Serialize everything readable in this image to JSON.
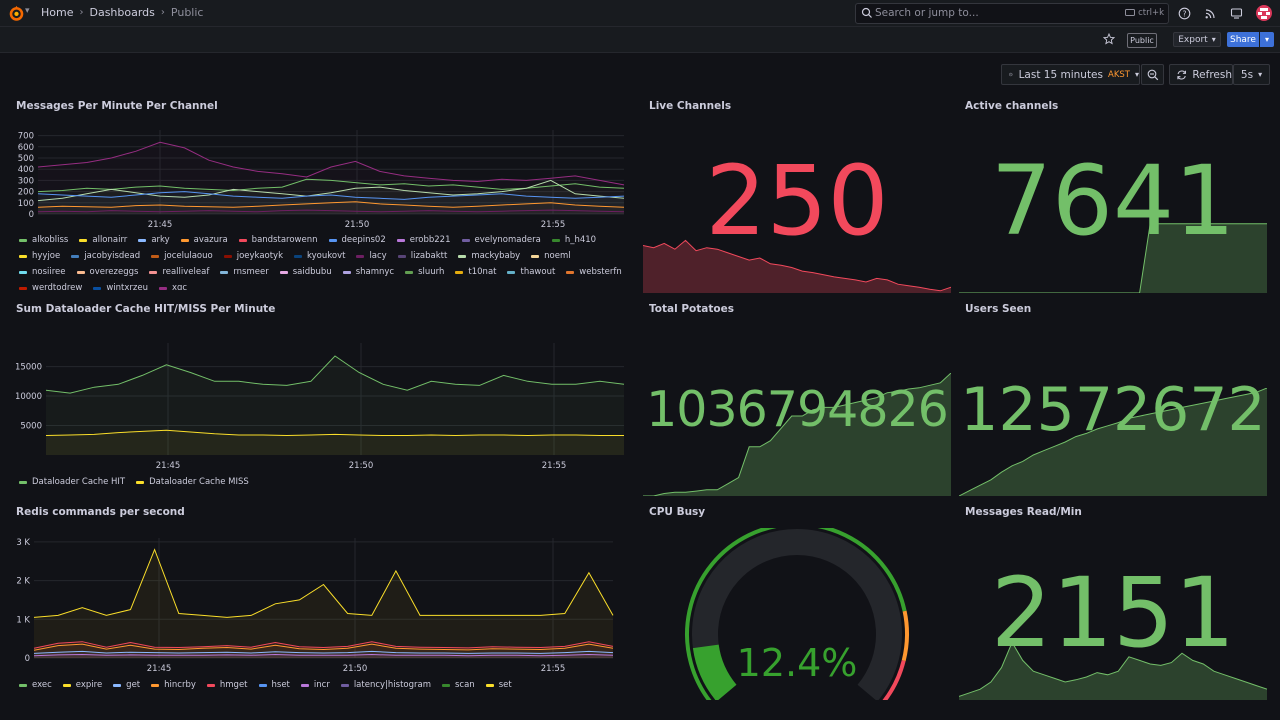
{
  "breadcrumbs": [
    "Home",
    "Dashboards",
    "Public"
  ],
  "search": {
    "placeholder": "Search or jump to...",
    "shortcut": "ctrl+k"
  },
  "toolbar": {
    "public_badge": "Public",
    "export_label": "Export",
    "share_label": "Share"
  },
  "timepicker": {
    "range": "Last 15 minutes",
    "timezone": "AKST",
    "refresh_label": "Refresh",
    "interval": "5s"
  },
  "colors": {
    "green": "#73bf69",
    "red": "#f2495c",
    "yellow": "#fade2a",
    "blue": "#8ab8ff",
    "orange": "#ff9830",
    "purple": "#ca95e5",
    "share_blue": "#3d71d9"
  },
  "icons": {
    "logo": "grafana-logo-icon",
    "help": "help-icon",
    "news": "rss-icon",
    "kiosk": "monitor-icon",
    "star": "star-icon",
    "clock": "clock-icon",
    "zoom": "zoom-out-icon",
    "refresh": "refresh-icon"
  },
  "panels": {
    "messages_per_minute": {
      "title": "Messages Per Minute Per Channel",
      "legend": [
        {
          "name": "alkobliss",
          "color": "#73bf69"
        },
        {
          "name": "allonairr",
          "color": "#fade2a"
        },
        {
          "name": "arky",
          "color": "#8ab8ff"
        },
        {
          "name": "avazura",
          "color": "#ff9830"
        },
        {
          "name": "bandstarowenn",
          "color": "#f2495c"
        },
        {
          "name": "deepins02",
          "color": "#5794f2"
        },
        {
          "name": "erobb221",
          "color": "#b877d9"
        },
        {
          "name": "evelynomadera",
          "color": "#705da0"
        },
        {
          "name": "h_h410",
          "color": "#37872d"
        },
        {
          "name": "hyyjoe",
          "color": "#fade2a"
        },
        {
          "name": "jacobyisdead",
          "color": "#447ebc"
        },
        {
          "name": "jocelulaouo",
          "color": "#c15c17"
        },
        {
          "name": "joeykaotyk",
          "color": "#890f02"
        },
        {
          "name": "kyoukovt",
          "color": "#0a437c"
        },
        {
          "name": "lacy",
          "color": "#6d1f62"
        },
        {
          "name": "lizabaktt",
          "color": "#584477"
        },
        {
          "name": "mackybaby",
          "color": "#b7dbab"
        },
        {
          "name": "noeml",
          "color": "#f4d598"
        },
        {
          "name": "nosiiree",
          "color": "#70dbed"
        },
        {
          "name": "overezeggs",
          "color": "#f9ba8f"
        },
        {
          "name": "realliveleaf",
          "color": "#f29191"
        },
        {
          "name": "rnsmeer",
          "color": "#82b5d8"
        },
        {
          "name": "saidbubu",
          "color": "#e5a8e2"
        },
        {
          "name": "shamnyc",
          "color": "#aea2e0"
        },
        {
          "name": "sluurh",
          "color": "#629e51"
        },
        {
          "name": "t10nat",
          "color": "#e5ac0e"
        },
        {
          "name": "thawout",
          "color": "#64b0c8"
        },
        {
          "name": "websterfn",
          "color": "#e0752d"
        },
        {
          "name": "werdtodrew",
          "color": "#bf1b00"
        },
        {
          "name": "wintxrzeu",
          "color": "#0a50a1"
        },
        {
          "name": "xqc",
          "color": "#962d82"
        }
      ]
    },
    "cache": {
      "title": "Sum Dataloader Cache HIT/MISS Per Minute",
      "legend": [
        {
          "name": "Dataloader Cache HIT",
          "color": "#73bf69"
        },
        {
          "name": "Dataloader Cache MISS",
          "color": "#fade2a"
        }
      ]
    },
    "redis": {
      "title": "Redis commands per second",
      "legend": [
        {
          "name": "exec",
          "color": "#73bf69"
        },
        {
          "name": "expire",
          "color": "#fade2a"
        },
        {
          "name": "get",
          "color": "#8ab8ff"
        },
        {
          "name": "hincrby",
          "color": "#ff9830"
        },
        {
          "name": "hmget",
          "color": "#f2495c"
        },
        {
          "name": "hset",
          "color": "#5794f2"
        },
        {
          "name": "incr",
          "color": "#b877d9"
        },
        {
          "name": "latency|histogram",
          "color": "#705da0"
        },
        {
          "name": "scan",
          "color": "#37872d"
        },
        {
          "name": "set",
          "color": "#fade2a"
        }
      ]
    },
    "live_channels": {
      "title": "Live Channels",
      "value": "250",
      "color": "#f2495c"
    },
    "active_channels": {
      "title": "Active channels",
      "value": "7641",
      "color": "#73bf69"
    },
    "total_potatoes": {
      "title": "Total Potatoes",
      "value": "1036794826",
      "color": "#73bf69"
    },
    "users_seen": {
      "title": "Users Seen",
      "value": "12572672",
      "color": "#73bf69"
    },
    "cpu_busy": {
      "title": "CPU Busy",
      "value": "12.4%",
      "percent": 12.4,
      "color": "#37a12e"
    },
    "messages_read": {
      "title": "Messages Read/Min",
      "value": "2151",
      "color": "#73bf69"
    }
  },
  "chart_data": [
    {
      "type": "line",
      "title": "Messages Per Minute Per Channel",
      "x_ticks": [
        "21:45",
        "21:50",
        "21:55"
      ],
      "y_ticks": [
        "0",
        "100",
        "200",
        "300",
        "400",
        "500",
        "600",
        "700"
      ],
      "ylim": [
        0,
        750
      ],
      "x": [
        0,
        1,
        2,
        3,
        4,
        5,
        6,
        7,
        8,
        9,
        10,
        11,
        12,
        13,
        14,
        15,
        16,
        17,
        18,
        19,
        20,
        21,
        22,
        23,
        24
      ],
      "series": [
        {
          "name": "xqc",
          "color": "#962d82",
          "values": [
            420,
            440,
            460,
            500,
            560,
            640,
            590,
            480,
            420,
            380,
            360,
            330,
            420,
            470,
            380,
            340,
            320,
            300,
            290,
            310,
            300,
            320,
            340,
            300,
            260
          ]
        },
        {
          "name": "h_h410",
          "color": "#73bf69",
          "values": [
            200,
            210,
            230,
            220,
            240,
            250,
            230,
            220,
            210,
            230,
            240,
            310,
            300,
            280,
            260,
            270,
            250,
            260,
            240,
            220,
            230,
            250,
            270,
            240,
            230
          ]
        },
        {
          "name": "mackybaby",
          "color": "#b7dbab",
          "values": [
            120,
            140,
            180,
            220,
            190,
            160,
            150,
            170,
            220,
            200,
            180,
            160,
            190,
            230,
            240,
            210,
            190,
            170,
            180,
            200,
            230,
            300,
            180,
            160,
            140
          ]
        },
        {
          "name": "deepins02",
          "color": "#5794f2",
          "values": [
            180,
            170,
            160,
            150,
            170,
            190,
            200,
            180,
            160,
            150,
            140,
            160,
            170,
            150,
            140,
            130,
            150,
            160,
            170,
            180,
            160,
            150,
            140,
            150,
            160
          ]
        },
        {
          "name": "avazura",
          "color": "#ff9830",
          "values": [
            60,
            70,
            65,
            60,
            75,
            80,
            70,
            65,
            60,
            70,
            80,
            90,
            100,
            110,
            90,
            80,
            70,
            60,
            70,
            80,
            90,
            100,
            80,
            70,
            60
          ]
        },
        {
          "name": "lacy",
          "color": "#6d1f62",
          "values": [
            20,
            25,
            20,
            30,
            25,
            20,
            25,
            30,
            25,
            20,
            30,
            35,
            30,
            25,
            20,
            25,
            30,
            25,
            20,
            25,
            30,
            35,
            30,
            25,
            20
          ]
        }
      ]
    },
    {
      "type": "area",
      "title": "Sum Dataloader Cache HIT/MISS Per Minute",
      "x_ticks": [
        "21:45",
        "21:50",
        "21:55"
      ],
      "y_ticks": [
        "5000",
        "10000",
        "15000"
      ],
      "ylim": [
        0,
        19000
      ],
      "x": [
        0,
        1,
        2,
        3,
        4,
        5,
        6,
        7,
        8,
        9,
        10,
        11,
        12,
        13,
        14,
        15,
        16,
        17,
        18,
        19,
        20,
        21,
        22,
        23,
        24
      ],
      "series": [
        {
          "name": "Dataloader Cache HIT",
          "color": "#73bf69",
          "values": [
            11000,
            10500,
            11500,
            12000,
            13500,
            15300,
            14000,
            12500,
            12500,
            12000,
            11800,
            12500,
            16800,
            14000,
            12000,
            11000,
            12500,
            12000,
            11800,
            13500,
            12500,
            12000,
            12000,
            12500,
            12000
          ]
        },
        {
          "name": "Dataloader Cache MISS",
          "color": "#fade2a",
          "values": [
            3300,
            3400,
            3500,
            3800,
            4000,
            4200,
            3900,
            3600,
            3400,
            3400,
            3300,
            3400,
            3500,
            3400,
            3300,
            3300,
            3400,
            3300,
            3400,
            3400,
            3300,
            3400,
            3400,
            3300,
            3300
          ]
        }
      ]
    },
    {
      "type": "area",
      "title": "Redis commands per second",
      "x_ticks": [
        "21:45",
        "21:50",
        "21:55"
      ],
      "y_ticks": [
        "0",
        "1 K",
        "2 K",
        "3 K"
      ],
      "ylim": [
        0,
        3100
      ],
      "x": [
        0,
        1,
        2,
        3,
        4,
        5,
        6,
        7,
        8,
        9,
        10,
        11,
        12,
        13,
        14,
        15,
        16,
        17,
        18,
        19,
        20,
        21,
        22,
        23,
        24
      ],
      "series": [
        {
          "name": "scan",
          "color": "#fade2a",
          "values": [
            1050,
            1100,
            1300,
            1100,
            1250,
            2800,
            1150,
            1100,
            1050,
            1100,
            1400,
            1500,
            1900,
            1150,
            1100,
            2250,
            1100,
            1100,
            1100,
            1100,
            1100,
            1100,
            1150,
            2200,
            1100
          ]
        },
        {
          "name": "hmget",
          "color": "#f2495c",
          "values": [
            250,
            380,
            420,
            280,
            400,
            280,
            270,
            290,
            320,
            280,
            400,
            290,
            270,
            300,
            420,
            300,
            280,
            270,
            260,
            290,
            280,
            270,
            300,
            420,
            300
          ]
        },
        {
          "name": "hincrby",
          "color": "#ff9830",
          "values": [
            200,
            320,
            360,
            230,
            330,
            230,
            220,
            250,
            270,
            230,
            330,
            240,
            220,
            250,
            360,
            250,
            230,
            220,
            210,
            240,
            230,
            220,
            250,
            360,
            250
          ]
        },
        {
          "name": "get",
          "color": "#8ab8ff",
          "values": [
            120,
            150,
            170,
            130,
            150,
            140,
            130,
            140,
            150,
            130,
            160,
            140,
            130,
            140,
            170,
            140,
            130,
            130,
            120,
            130,
            130,
            120,
            140,
            170,
            140
          ]
        },
        {
          "name": "incr",
          "color": "#b877d9",
          "values": [
            60,
            80,
            90,
            70,
            80,
            70,
            70,
            70,
            80,
            70,
            90,
            70,
            70,
            70,
            90,
            70,
            70,
            70,
            60,
            70,
            70,
            60,
            70,
            90,
            70
          ]
        }
      ]
    },
    {
      "type": "area",
      "title": "Live Channels",
      "color": "#f2495c",
      "ylim": [
        0,
        100
      ],
      "values": [
        65,
        62,
        68,
        60,
        72,
        58,
        62,
        60,
        55,
        50,
        45,
        48,
        40,
        38,
        35,
        30,
        28,
        25,
        22,
        20,
        18,
        15,
        20,
        18,
        12,
        10,
        8,
        5,
        3,
        8
      ]
    },
    {
      "type": "area",
      "title": "Active channels",
      "color": "#73bf69",
      "ylim": [
        0,
        100
      ],
      "values": [
        0,
        0,
        0,
        0,
        0,
        0,
        0,
        0,
        0,
        0,
        0,
        0,
        0,
        0,
        0,
        0,
        0,
        0,
        95,
        95,
        95,
        95,
        95,
        95,
        95,
        95,
        95,
        95,
        95,
        95
      ]
    },
    {
      "type": "area",
      "title": "Total Potatoes",
      "color": "#73bf69",
      "ylim": [
        0,
        100
      ],
      "values": [
        0,
        0,
        2,
        3,
        3,
        4,
        5,
        5,
        10,
        15,
        40,
        40,
        45,
        55,
        65,
        65,
        70,
        72,
        72,
        74,
        76,
        78,
        80,
        84,
        85,
        87,
        88,
        90,
        92,
        100
      ]
    },
    {
      "type": "area",
      "title": "Users Seen",
      "color": "#73bf69",
      "ylim": [
        0,
        100
      ],
      "values": [
        0,
        5,
        10,
        15,
        22,
        28,
        32,
        38,
        42,
        46,
        50,
        55,
        58,
        62,
        65,
        68,
        72,
        74,
        76,
        78,
        80,
        82,
        84,
        86,
        88,
        90,
        92,
        94,
        96,
        100
      ]
    },
    {
      "type": "area",
      "title": "Messages Read/Min",
      "color": "#73bf69",
      "ylim": [
        0,
        100
      ],
      "values": [
        5,
        10,
        15,
        25,
        45,
        80,
        55,
        40,
        35,
        30,
        25,
        28,
        32,
        38,
        35,
        40,
        60,
        55,
        50,
        48,
        52,
        65,
        55,
        50,
        40,
        35,
        30,
        25,
        20,
        15
      ]
    }
  ]
}
